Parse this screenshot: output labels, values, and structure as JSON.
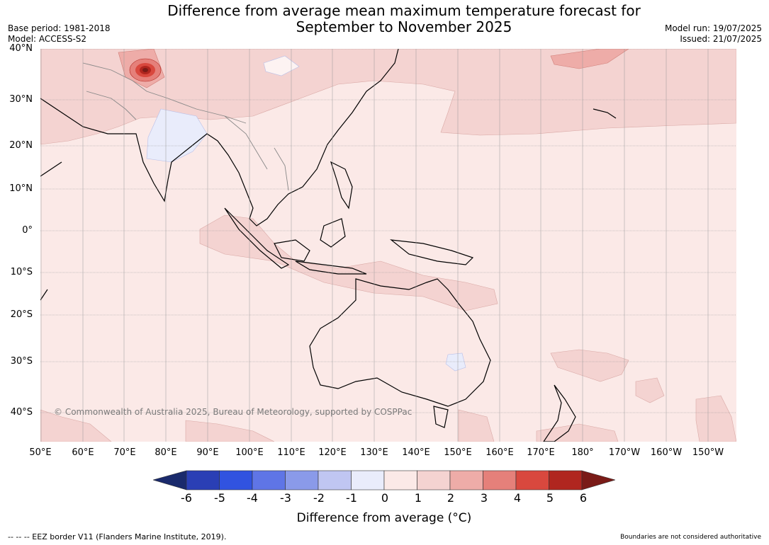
{
  "title_line1": "Difference from average mean maximum temperature forecast for",
  "title_line2": "September to November 2025",
  "base_period": "Base period: 1981-2018",
  "model": "Model: ACCESS-S2",
  "model_run": "Model run: 19/07/2025",
  "issued": "Issued: 21/07/2025",
  "lat_labels": [
    "40°N",
    "30°N",
    "20°N",
    "10°N",
    "0°",
    "10°S",
    "20°S",
    "30°S",
    "40°S"
  ],
  "lon_labels": [
    "50°E",
    "60°E",
    "70°E",
    "80°E",
    "90°E",
    "100°E",
    "110°E",
    "120°E",
    "130°E",
    "140°E",
    "150°E",
    "160°E",
    "170°E",
    "180°",
    "170°W",
    "160°W",
    "150°W"
  ],
  "copyright": "© Commonwealth of Australia 2025, Bureau of Meteorology, supported by COSPPac",
  "colorbar": {
    "ticks": [
      "-6",
      "-5",
      "-4",
      "-3",
      "-2",
      "-1",
      "0",
      "1",
      "2",
      "3",
      "4",
      "5",
      "6"
    ],
    "colors": [
      "#1a2a6c",
      "#2a3fb5",
      "#3153e0",
      "#5f75e6",
      "#8a9ae9",
      "#c0c6f2",
      "#e9ecfb",
      "#fbe9e7",
      "#f4d3d1",
      "#eeaca8",
      "#e5807a",
      "#d9483e",
      "#b0261f",
      "#7a1b17"
    ],
    "label": "Difference from average (°C)"
  },
  "footer_left": "--  --  -- EEZ border V11 (Flanders Marine Institute, 2019).",
  "footer_right": "Boundaries are not considered authoritative"
}
